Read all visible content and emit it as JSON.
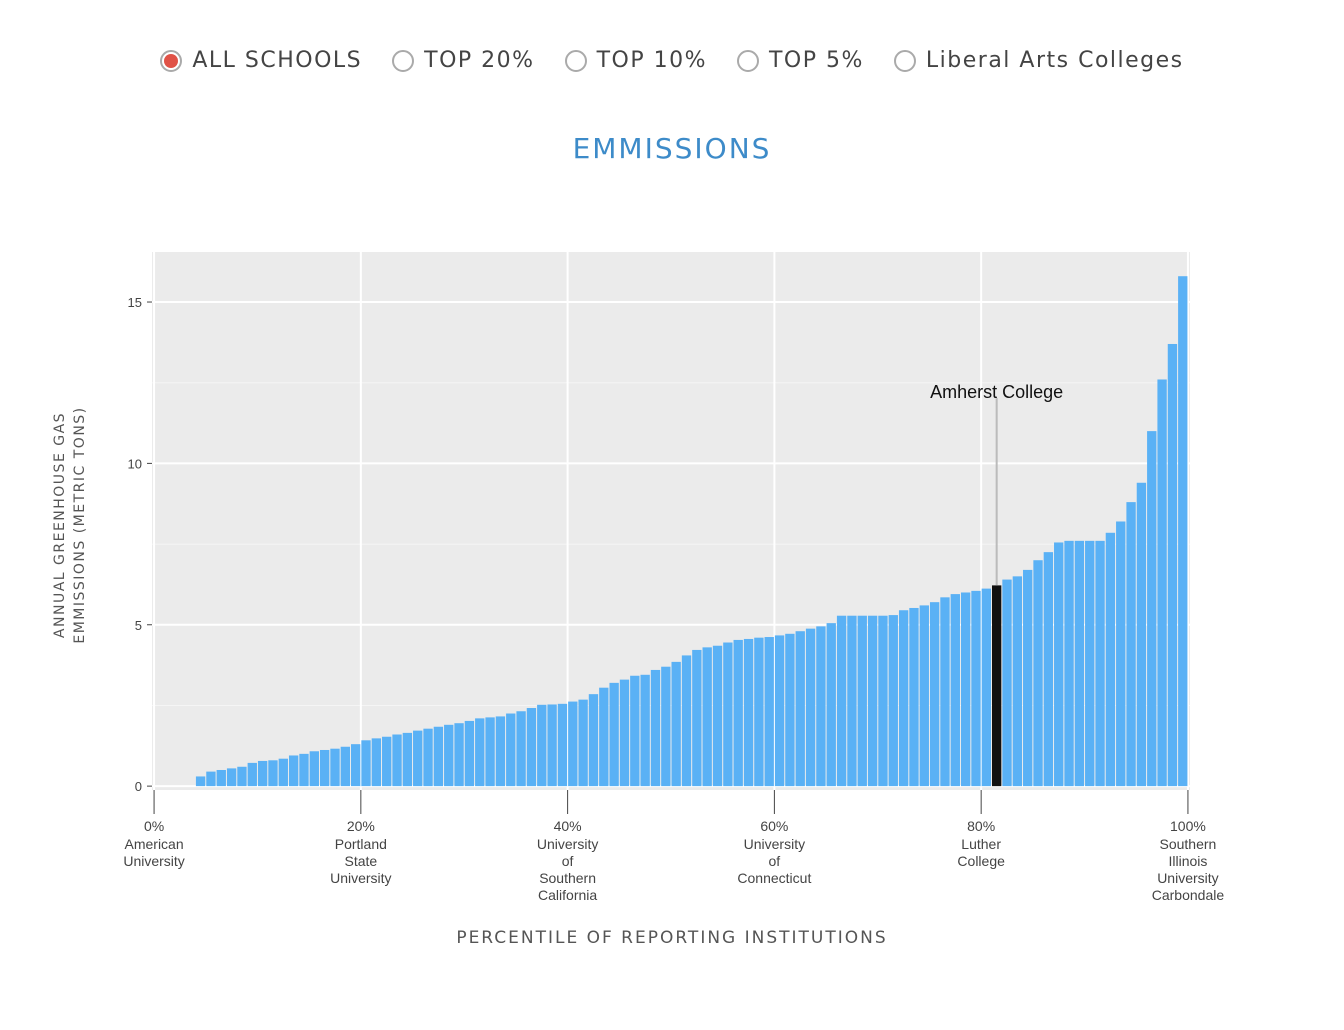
{
  "filters": {
    "options": [
      "ALL SCHOOLS",
      "TOP 20%",
      "TOP 10%",
      "TOP 5%",
      "Liberal Arts Colleges"
    ],
    "selected": 0
  },
  "chart_data": {
    "type": "bar",
    "title": "EMMISSIONS",
    "x_label": "PERCENTILE OF REPORTING INSTITUTIONS",
    "y_label": "ANNUAL GREENHOUSE GAS EMMISSIONS (METRIC TONS)",
    "x": [
      5,
      6,
      7,
      8,
      9,
      10,
      11,
      12,
      13,
      14,
      15,
      16,
      17,
      18,
      19,
      20,
      21,
      22,
      23,
      24,
      25,
      26,
      27,
      28,
      29,
      30,
      31,
      32,
      33,
      34,
      35,
      36,
      37,
      38,
      39,
      40,
      41,
      42,
      43,
      44,
      45,
      46,
      47,
      48,
      49,
      50,
      51,
      52,
      53,
      54,
      55,
      56,
      57,
      58,
      59,
      60,
      61,
      62,
      63,
      64,
      65,
      66,
      67,
      68,
      69,
      70,
      71,
      72,
      73,
      74,
      75,
      76,
      77,
      78,
      79,
      80,
      81,
      82,
      83,
      84,
      85,
      86,
      87,
      88,
      89,
      90,
      91,
      92,
      93,
      94,
      95,
      96,
      97,
      98,
      99,
      100
    ],
    "values": [
      0.3,
      0.45,
      0.5,
      0.55,
      0.6,
      0.72,
      0.78,
      0.8,
      0.85,
      0.95,
      1.0,
      1.08,
      1.12,
      1.16,
      1.22,
      1.3,
      1.42,
      1.48,
      1.53,
      1.6,
      1.65,
      1.72,
      1.78,
      1.84,
      1.9,
      1.95,
      2.02,
      2.1,
      2.13,
      2.16,
      2.25,
      2.32,
      2.42,
      2.52,
      2.53,
      2.55,
      2.62,
      2.68,
      2.85,
      3.05,
      3.2,
      3.3,
      3.42,
      3.45,
      3.6,
      3.7,
      3.85,
      4.05,
      4.22,
      4.3,
      4.35,
      4.45,
      4.53,
      4.56,
      4.6,
      4.62,
      4.67,
      4.72,
      4.8,
      4.88,
      4.95,
      5.05,
      5.28,
      5.28,
      5.28,
      5.28,
      5.28,
      5.3,
      5.45,
      5.52,
      5.6,
      5.7,
      5.85,
      5.95,
      6.0,
      6.05,
      6.12,
      6.22,
      6.4,
      6.5,
      6.7,
      7.0,
      7.25,
      7.55,
      7.6,
      7.6,
      7.6,
      7.6,
      7.85,
      8.2,
      8.8,
      9.4,
      11.0,
      12.6,
      13.7,
      15.8
    ],
    "color": "#5ab1f5",
    "highlight": {
      "text": "Amherst College",
      "index": 77,
      "color": "#111111"
    },
    "xlim": [
      -0.2,
      100.2
    ],
    "ylim": [
      -0.12,
      16.55
    ],
    "xticks": [
      {
        "value": 0,
        "label": "0%"
      },
      {
        "value": 20,
        "label": "20%"
      },
      {
        "value": 40,
        "label": "40%"
      },
      {
        "value": 60,
        "label": "60%"
      },
      {
        "value": 80,
        "label": "80%"
      },
      {
        "value": 100,
        "label": "100%"
      }
    ],
    "xtick_names": [
      "American University",
      "Portland State University",
      "University of Southern California",
      "University of Connecticut",
      "Luther College",
      "Southern Illinois University Carbondale"
    ],
    "yticks": [
      0,
      5,
      10,
      15
    ],
    "minor_yticks": [
      2.5,
      7.5,
      12.5
    ],
    "grid": true
  }
}
